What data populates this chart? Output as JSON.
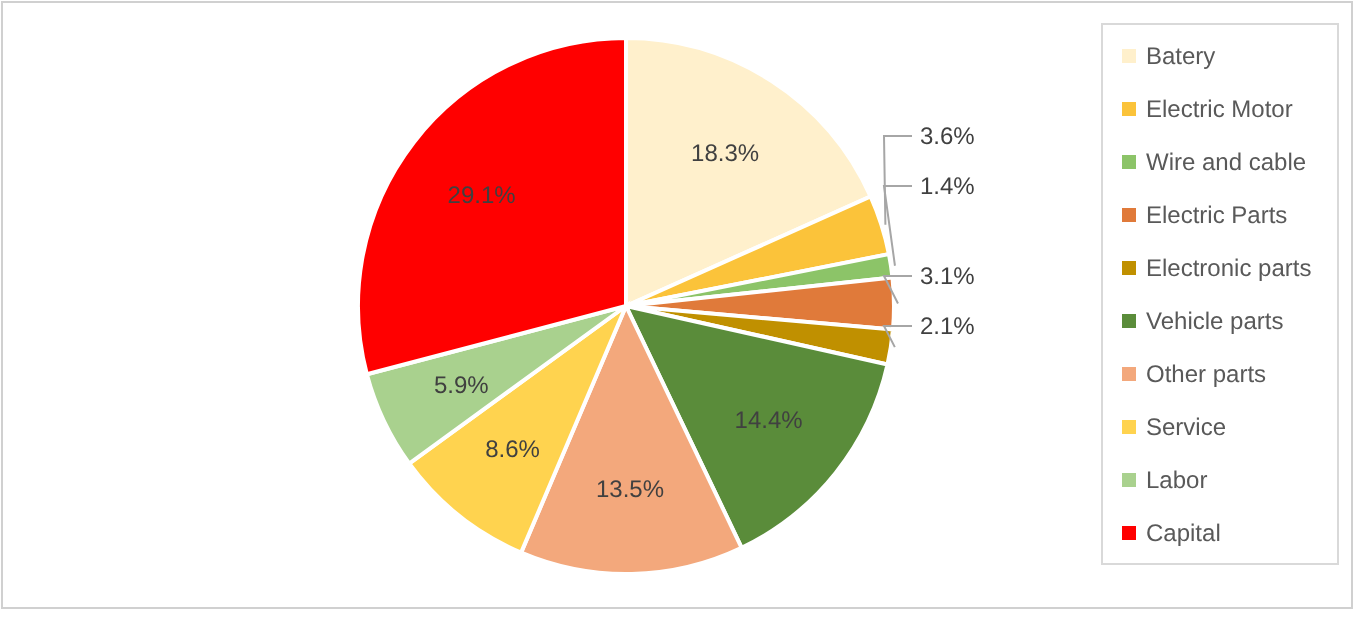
{
  "chart_data": {
    "type": "pie",
    "categories": [
      "Batery",
      "Electric Motor",
      "Wire and cable",
      "Electric Parts",
      "Electronic parts",
      "Vehicle parts",
      "Other parts",
      "Service",
      "Labor",
      "Capital"
    ],
    "values": [
      18.3,
      3.6,
      1.4,
      3.1,
      2.1,
      14.4,
      13.5,
      8.6,
      5.9,
      29.1
    ],
    "value_labels": [
      "18.3%",
      "3.6%",
      "1.4%",
      "3.1%",
      "2.1%",
      "14.4%",
      "13.5%",
      "8.6%",
      "5.9%",
      "29.1%"
    ],
    "colors": [
      "#fff0cc",
      "#fbc33a",
      "#8cc468",
      "#e07a3a",
      "#c09000",
      "#5a8c3a",
      "#f3a87c",
      "#ffd34f",
      "#a9d18e",
      "#ff0000"
    ],
    "legend": "right"
  }
}
